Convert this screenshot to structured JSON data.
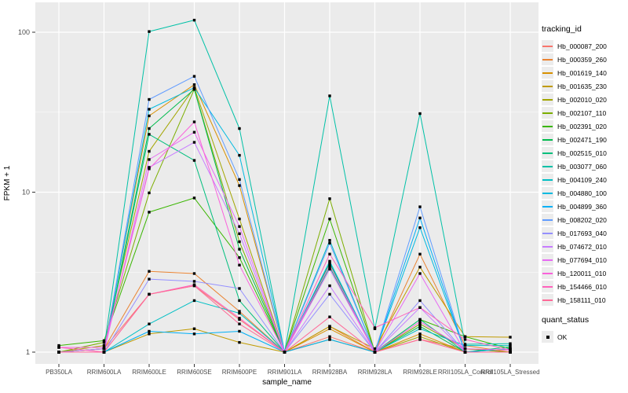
{
  "figure": {
    "panel_bg": "#EBEBEB",
    "grid_color": "#FFFFFF",
    "axis_text_color": "#4D4D4D",
    "axis_title_color": "#000000",
    "marker_color": "#000000"
  },
  "chart_data": {
    "type": "line",
    "title": "",
    "xlabel": "sample_name",
    "ylabel": "FPKM + 1",
    "y_scale": "log10",
    "y_ticks": [
      1,
      10,
      100
    ],
    "ylim": [
      0.85,
      155
    ],
    "grid": "major and minor horizontal white gridlines, vertical major gridlines per category",
    "legend_position": "right",
    "legend_title": "tracking_id",
    "quant_status": {
      "title": "quant_status",
      "items": [
        {
          "label": "OK",
          "marker": "black-square"
        }
      ]
    },
    "categories": [
      "PB350LA",
      "RRIM600LA",
      "RRIM600LE",
      "RRIM600SE",
      "RRIM600PE",
      "RRIM901LA",
      "RRIM928BA",
      "RRIM928LA",
      "RRIM928LE",
      "RRII105LA_Control",
      "RRII105LA_Stressed"
    ],
    "series": [
      {
        "name": "Hb_000087_200",
        "color": "#F8766D",
        "values": [
          1,
          1.05,
          2.3,
          2.6,
          1.6,
          1,
          1.25,
          1,
          1.2,
          1.05,
          1
        ]
      },
      {
        "name": "Hb_000359_260",
        "color": "#EA8331",
        "values": [
          1,
          1.05,
          3.2,
          3.1,
          1.8,
          1,
          1.45,
          1,
          4.1,
          1.1,
          1
        ]
      },
      {
        "name": "Hb_001619_140",
        "color": "#D89000",
        "values": [
          1,
          1.05,
          30,
          47,
          11,
          1,
          1.4,
          1,
          1.3,
          1,
          1
        ]
      },
      {
        "name": "Hb_001635_230",
        "color": "#C09B00",
        "values": [
          1,
          1,
          1.3,
          1.4,
          1.15,
          1,
          1.45,
          1.05,
          3.4,
          1.25,
          1.24
        ]
      },
      {
        "name": "Hb_002010_020",
        "color": "#A3A500",
        "values": [
          1,
          1.1,
          18,
          45,
          6.8,
          1,
          1.2,
          1,
          1.25,
          1,
          1.05
        ]
      },
      {
        "name": "Hb_002107_110",
        "color": "#7CAE00",
        "values": [
          1,
          1.15,
          9.9,
          44,
          4.9,
          1,
          9.1,
          1,
          1.5,
          1.05,
          1
        ]
      },
      {
        "name": "Hb_002391_020",
        "color": "#39B600",
        "values": [
          1.1,
          1.18,
          7.5,
          9.2,
          3.9,
          1,
          6.8,
          1,
          1.6,
          1.25,
          1.05
        ]
      },
      {
        "name": "Hb_002471_190",
        "color": "#00BB4E",
        "values": [
          1,
          1,
          25,
          44,
          4.4,
          1,
          3.6,
          1,
          1.45,
          1,
          1
        ]
      },
      {
        "name": "Hb_002515_010",
        "color": "#00BF7D",
        "values": [
          1,
          1,
          23,
          15.8,
          2.1,
          1,
          3.4,
          1,
          1.6,
          1,
          1.08
        ]
      },
      {
        "name": "Hb_003077_060",
        "color": "#00C1A7",
        "values": [
          1,
          1.05,
          101,
          119,
          25,
          1,
          40,
          1.4,
          31,
          1.12,
          1.13
        ]
      },
      {
        "name": "Hb_004109_240",
        "color": "#00BFC4",
        "values": [
          1,
          1,
          1.5,
          2.1,
          1.75,
          1,
          5.0,
          1,
          1.4,
          1.1,
          1.1
        ]
      },
      {
        "name": "Hb_004880_100",
        "color": "#00BAE0",
        "values": [
          1,
          1,
          33,
          45,
          17,
          1,
          3.7,
          1,
          6.0,
          1,
          1
        ]
      },
      {
        "name": "Hb_004899_360",
        "color": "#00B0F6",
        "values": [
          1,
          1,
          1.35,
          1.3,
          1.35,
          1,
          1.2,
          1,
          6.9,
          1,
          1.05
        ]
      },
      {
        "name": "Hb_008202_020",
        "color": "#619CFF",
        "values": [
          1,
          1,
          38,
          53,
          12,
          1,
          4.8,
          1,
          8.1,
          1,
          1
        ]
      },
      {
        "name": "Hb_017693_040",
        "color": "#9590FF",
        "values": [
          1,
          1,
          2.86,
          2.77,
          2.5,
          1,
          2.3,
          1,
          2.1,
          1,
          1
        ]
      },
      {
        "name": "Hb_074672_010",
        "color": "#C77CFF",
        "values": [
          1,
          1.05,
          14.3,
          20.5,
          5.5,
          1,
          2.6,
          1,
          1.9,
          1,
          1
        ]
      },
      {
        "name": "Hb_077694_010",
        "color": "#E76BF3",
        "values": [
          1,
          1,
          16,
          23.7,
          6.1,
          1,
          3.3,
          1,
          3.1,
          1,
          1
        ]
      },
      {
        "name": "Hb_120011_010",
        "color": "#FA62DB",
        "values": [
          1.07,
          1.07,
          14,
          27.5,
          3.5,
          1,
          3.5,
          1,
          1.55,
          1.05,
          1.03
        ]
      },
      {
        "name": "Hb_154466_010",
        "color": "#FF62BC",
        "values": [
          1.07,
          1,
          2.3,
          2.64,
          1.63,
          1,
          4.1,
          1.42,
          1.9,
          1.2,
          1.03
        ]
      },
      {
        "name": "Hb_158111_010",
        "color": "#FF6A98",
        "values": [
          1,
          1,
          2.3,
          2.6,
          1.5,
          1,
          1.66,
          1,
          1.2,
          1,
          1
        ]
      }
    ]
  }
}
